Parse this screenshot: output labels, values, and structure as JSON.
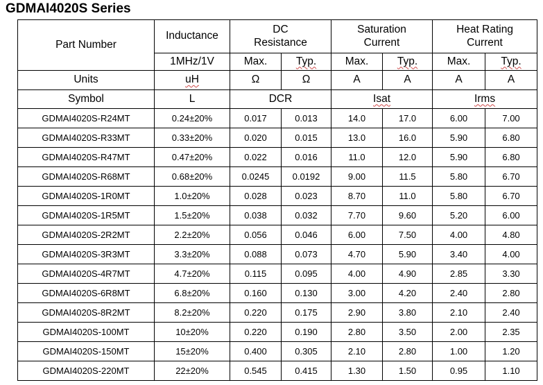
{
  "title": "GDMAI4020S Series",
  "headers": {
    "part_number": "Part Number",
    "inductance": "Inductance",
    "dc_line1": "DC",
    "dc_line2": "Resistance",
    "sat_line1": "Saturation",
    "sat_line2": "Current",
    "heat_line1": "Heat Rating",
    "heat_line2": "Current",
    "test_condition": "1MHz/1V",
    "max": "Max.",
    "typ": "Typ."
  },
  "units": {
    "label": "Units",
    "inductance": "uH",
    "dcr_max": "Ω",
    "dcr_typ": "Ω",
    "isat_max": "A",
    "isat_typ": "A",
    "irms_max": "A",
    "irms_typ": "A"
  },
  "symbols": {
    "label": "Symbol",
    "inductance": "L",
    "dcr": "DCR",
    "isat": "Isat",
    "irms": "Irms"
  },
  "rows": [
    {
      "part": "GDMAI4020S-R24MT",
      "l": "0.24±20%",
      "dcr_max": "0.017",
      "dcr_typ": "0.013",
      "isat_max": "14.0",
      "isat_typ": "17.0",
      "irms_max": "6.00",
      "irms_typ": "7.00"
    },
    {
      "part": "GDMAI4020S-R33MT",
      "l": "0.33±20%",
      "dcr_max": "0.020",
      "dcr_typ": "0.015",
      "isat_max": "13.0",
      "isat_typ": "16.0",
      "irms_max": "5.90",
      "irms_typ": "6.80"
    },
    {
      "part": "GDMAI4020S-R47MT",
      "l": "0.47±20%",
      "dcr_max": "0.022",
      "dcr_typ": "0.016",
      "isat_max": "11.0",
      "isat_typ": "12.0",
      "irms_max": "5.90",
      "irms_typ": "6.80"
    },
    {
      "part": "GDMAI4020S-R68MT",
      "l": "0.68±20%",
      "dcr_max": "0.0245",
      "dcr_typ": "0.0192",
      "isat_max": "9.00",
      "isat_typ": "11.5",
      "irms_max": "5.80",
      "irms_typ": "6.70"
    },
    {
      "part": "GDMAI4020S-1R0MT",
      "l": "1.0±20%",
      "dcr_max": "0.028",
      "dcr_typ": "0.023",
      "isat_max": "8.70",
      "isat_typ": "11.0",
      "irms_max": "5.80",
      "irms_typ": "6.70"
    },
    {
      "part": "GDMAI4020S-1R5MT",
      "l": "1.5±20%",
      "dcr_max": "0.038",
      "dcr_typ": "0.032",
      "isat_max": "7.70",
      "isat_typ": "9.60",
      "irms_max": "5.20",
      "irms_typ": "6.00"
    },
    {
      "part": "GDMAI4020S-2R2MT",
      "l": "2.2±20%",
      "dcr_max": "0.056",
      "dcr_typ": "0.046",
      "isat_max": "6.00",
      "isat_typ": "7.50",
      "irms_max": "4.00",
      "irms_typ": "4.80"
    },
    {
      "part": "GDMAI4020S-3R3MT",
      "l": "3.3±20%",
      "dcr_max": "0.088",
      "dcr_typ": "0.073",
      "isat_max": "4.70",
      "isat_typ": "5.90",
      "irms_max": "3.40",
      "irms_typ": "4.00"
    },
    {
      "part": "GDMAI4020S-4R7MT",
      "l": "4.7±20%",
      "dcr_max": "0.115",
      "dcr_typ": "0.095",
      "isat_max": "4.00",
      "isat_typ": "4.90",
      "irms_max": "2.85",
      "irms_typ": "3.30"
    },
    {
      "part": "GDMAI4020S-6R8MT",
      "l": "6.8±20%",
      "dcr_max": "0.160",
      "dcr_typ": "0.130",
      "isat_max": "3.00",
      "isat_typ": "4.20",
      "irms_max": "2.40",
      "irms_typ": "2.80"
    },
    {
      "part": "GDMAI4020S-8R2MT",
      "l": "8.2±20%",
      "dcr_max": "0.220",
      "dcr_typ": "0.175",
      "isat_max": "2.90",
      "isat_typ": "3.80",
      "irms_max": "2.10",
      "irms_typ": "2.40"
    },
    {
      "part": "GDMAI4020S-100MT",
      "l": "10±20%",
      "dcr_max": "0.220",
      "dcr_typ": "0.190",
      "isat_max": "2.80",
      "isat_typ": "3.50",
      "irms_max": "2.00",
      "irms_typ": "2.35"
    },
    {
      "part": "GDMAI4020S-150MT",
      "l": "15±20%",
      "dcr_max": "0.400",
      "dcr_typ": "0.305",
      "isat_max": "2.10",
      "isat_typ": "2.80",
      "irms_max": "1.00",
      "irms_typ": "1.20"
    },
    {
      "part": "GDMAI4020S-220MT",
      "l": "22±20%",
      "dcr_max": "0.545",
      "dcr_typ": "0.415",
      "isat_max": "1.30",
      "isat_typ": "1.50",
      "irms_max": "0.95",
      "irms_typ": "1.10"
    }
  ]
}
